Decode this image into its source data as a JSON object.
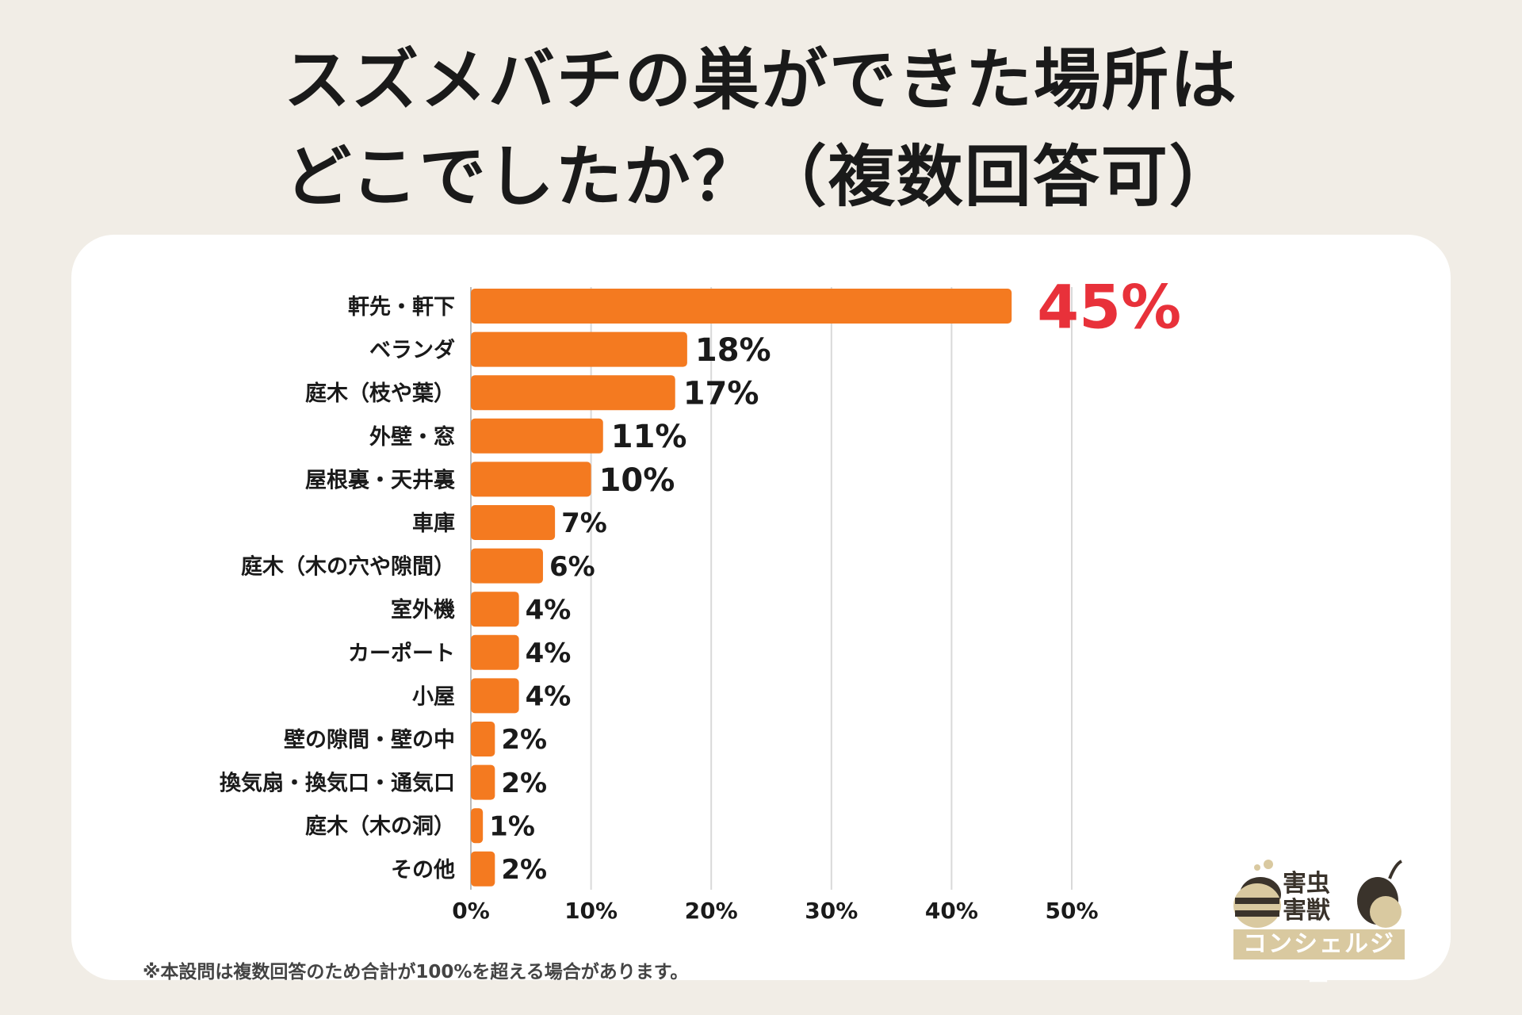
{
  "title": {
    "line1": "スズメバチの巣ができた場所は",
    "line2": "どこでしたか？（複数回答可）"
  },
  "footnote": "※本設問は複数回答のため合計が100%を超える場合があります。",
  "logo": {
    "line1": "害虫",
    "line2": "害獣",
    "band": "コンシェルジュ"
  },
  "colors": {
    "bar": "#f47a20",
    "highlight_label": "#e8313a",
    "grid": "#d9d9d9",
    "text": "#1a1a1a"
  },
  "chart_data": {
    "type": "bar",
    "orientation": "horizontal",
    "title": "スズメバチの巣ができた場所はどこでしたか？（複数回答可）",
    "xlim": [
      0,
      50
    ],
    "x_ticks": [
      "0%",
      "10%",
      "20%",
      "30%",
      "40%",
      "50%"
    ],
    "grid": true,
    "categories": [
      "軒先・軒下",
      "ベランダ",
      "庭木（枝や葉）",
      "外壁・窓",
      "屋根裏・天井裏",
      "車庫",
      "庭木（木の穴や隙間）",
      "室外機",
      "カーポート",
      "小屋",
      "壁の隙間・壁の中",
      "換気扇・換気口・通気口",
      "庭木（木の洞）",
      "その他"
    ],
    "values": [
      45,
      18,
      17,
      11,
      10,
      7,
      6,
      4,
      4,
      4,
      2,
      2,
      1,
      2
    ],
    "value_labels": [
      "45%",
      "18%",
      "17%",
      "11%",
      "10%",
      "7%",
      "6%",
      "4%",
      "4%",
      "4%",
      "2%",
      "2%",
      "1%",
      "2%"
    ]
  }
}
